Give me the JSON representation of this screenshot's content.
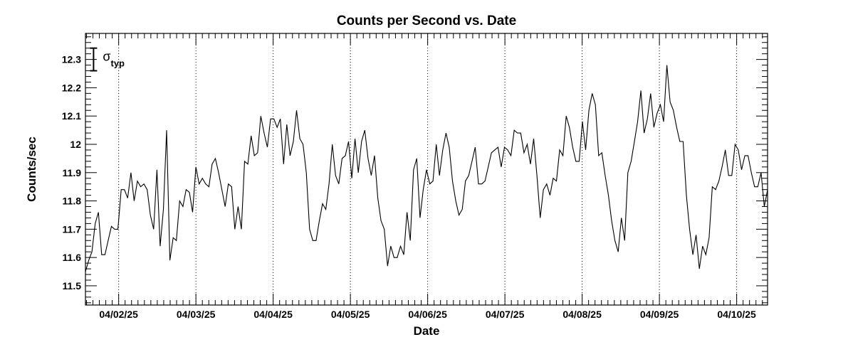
{
  "chart_data": {
    "type": "line",
    "title": "Counts per Second vs. Date",
    "xlabel": "Date",
    "ylabel": "Counts/sec",
    "ylim": [
      11.432,
      12.392
    ],
    "xlim_days": [
      -0.43,
      8.4
    ],
    "x_ticks": [
      "04/02/25",
      "04/03/25",
      "04/04/25",
      "04/05/25",
      "04/06/25",
      "04/07/25",
      "04/08/25",
      "04/09/25",
      "04/10/25"
    ],
    "y_ticks": [
      "11.5",
      "11.6",
      "11.7",
      "11.8",
      "11.9",
      "12",
      "12.1",
      "12.2",
      "12.3"
    ],
    "y_tick_values": [
      11.5,
      11.6,
      11.7,
      11.8,
      11.9,
      12.0,
      12.1,
      12.2,
      12.3
    ],
    "grid": "vertical dotted lines at each date",
    "annotation": {
      "symbol": "σ",
      "subscript": "typ",
      "error_bar_halfwidth": 0.04,
      "y_center": 12.3
    },
    "series": [
      {
        "values": [
          11.55,
          11.59,
          11.62,
          11.72,
          11.76,
          11.61,
          11.61,
          11.66,
          11.71,
          11.7,
          11.7,
          11.84,
          11.84,
          11.81,
          11.9,
          11.8,
          11.87,
          11.85,
          11.86,
          11.84,
          11.75,
          11.7,
          11.91,
          11.64,
          11.77,
          12.05,
          11.59,
          11.67,
          11.66,
          11.8,
          11.78,
          11.84,
          11.83,
          11.76,
          11.92,
          11.86,
          11.88,
          11.86,
          11.85,
          11.93,
          11.95,
          11.9,
          11.84,
          11.78,
          11.86,
          11.85,
          11.7,
          11.78,
          11.7,
          11.94,
          11.93,
          12.03,
          11.96,
          11.97,
          12.1,
          12.04,
          11.99,
          12.09,
          12.09,
          12.06,
          12.09,
          11.93,
          12.07,
          11.96,
          12.01,
          12.12,
          12.02,
          12.0,
          11.9,
          11.7,
          11.66,
          11.66,
          11.73,
          11.79,
          11.77,
          11.86,
          12.0,
          11.89,
          11.86,
          11.95,
          11.96,
          12.01,
          11.88,
          12.02,
          11.9,
          12.01,
          12.05,
          11.95,
          11.89,
          11.96,
          11.81,
          11.73,
          11.7,
          11.57,
          11.64,
          11.6,
          11.6,
          11.64,
          11.61,
          11.76,
          11.66,
          11.91,
          11.95,
          11.74,
          11.84,
          11.91,
          11.86,
          11.87,
          12.0,
          11.89,
          11.98,
          12.04,
          11.99,
          11.87,
          11.8,
          11.75,
          11.77,
          11.87,
          11.89,
          11.94,
          11.99,
          11.86,
          11.86,
          11.87,
          11.92,
          11.97,
          11.98,
          11.99,
          11.92,
          11.99,
          11.98,
          11.96,
          12.05,
          12.04,
          12.04,
          11.97,
          12.0,
          11.93,
          12.02,
          11.89,
          11.74,
          11.84,
          11.86,
          11.82,
          11.88,
          11.87,
          11.98,
          11.96,
          12.1,
          12.06,
          11.99,
          11.94,
          11.94,
          12.08,
          11.98,
          12.12,
          12.18,
          12.14,
          11.96,
          11.97,
          11.89,
          11.82,
          11.73,
          11.66,
          11.62,
          11.74,
          11.66,
          11.9,
          11.94,
          12.01,
          12.08,
          12.19,
          12.04,
          12.09,
          12.18,
          12.06,
          12.11,
          12.14,
          12.08,
          12.28,
          12.15,
          12.12,
          12.06,
          12.01,
          12.01,
          11.82,
          11.7,
          11.61,
          11.68,
          11.56,
          11.64,
          11.61,
          11.67,
          11.85,
          11.84,
          11.87,
          11.92,
          11.98,
          11.89,
          11.89,
          12.0,
          11.98,
          11.91,
          11.96,
          11.96,
          11.9,
          11.85,
          11.85,
          11.9,
          11.78,
          11.84
        ],
        "x_range_days": [
          -0.43,
          8.4
        ]
      }
    ]
  }
}
